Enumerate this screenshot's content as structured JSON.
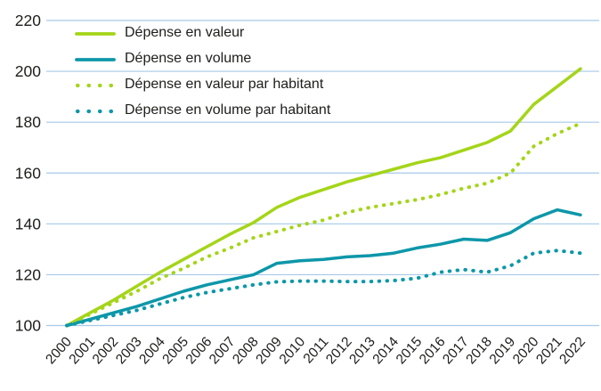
{
  "chart_data": {
    "type": "line",
    "title": "",
    "xlabel": "",
    "ylabel": "",
    "x": [
      2000,
      2001,
      2002,
      2003,
      2004,
      2005,
      2006,
      2007,
      2008,
      2009,
      2010,
      2011,
      2012,
      2013,
      2014,
      2015,
      2016,
      2017,
      2018,
      2019,
      2020,
      2021,
      2022
    ],
    "series": [
      {
        "name": "Dépense en valeur",
        "style": "solid",
        "color": "#a4d519",
        "values": [
          100,
          105,
          110,
          115.5,
          121,
          126,
          131,
          136,
          140.5,
          146.5,
          150.5,
          153.5,
          156.5,
          159,
          161.5,
          164,
          166,
          169,
          172,
          176.5,
          187,
          194,
          201
        ]
      },
      {
        "name": "Dépense en volume",
        "style": "solid",
        "color": "#0d97a9",
        "values": [
          100,
          102.5,
          105,
          107.5,
          110.5,
          113.5,
          116,
          118,
          120,
          124.5,
          125.5,
          126,
          127,
          127.5,
          128.5,
          130.5,
          132,
          134,
          133.5,
          136.5,
          142,
          145.5,
          143.5
        ]
      },
      {
        "name": "Dépense en valeur par habitant",
        "style": "dotted",
        "color": "#a4d519",
        "values": [
          100,
          104.5,
          109,
          113.5,
          118.5,
          122.5,
          127,
          130.5,
          134.5,
          137,
          139.5,
          141.5,
          144.5,
          146.5,
          148,
          149.5,
          151.5,
          154,
          156,
          160,
          170.5,
          175.5,
          179.5
        ]
      },
      {
        "name": "Dépense en volume par habitant",
        "style": "dotted",
        "color": "#0d97a9",
        "values": [
          100,
          102,
          104,
          106,
          108.5,
          111,
          113,
          114.5,
          116,
          117.2,
          117.5,
          117.5,
          117.3,
          117.3,
          117.7,
          118.6,
          121,
          122,
          121,
          123.5,
          128.5,
          129.5,
          128.5
        ]
      }
    ],
    "ylim": [
      100,
      220
    ],
    "yticks": [
      100,
      120,
      140,
      160,
      180,
      200,
      220
    ],
    "grid": true,
    "gridline_color": "#a6c9e8",
    "text_color": "#1d1d1b",
    "legend_position": "top-left"
  }
}
